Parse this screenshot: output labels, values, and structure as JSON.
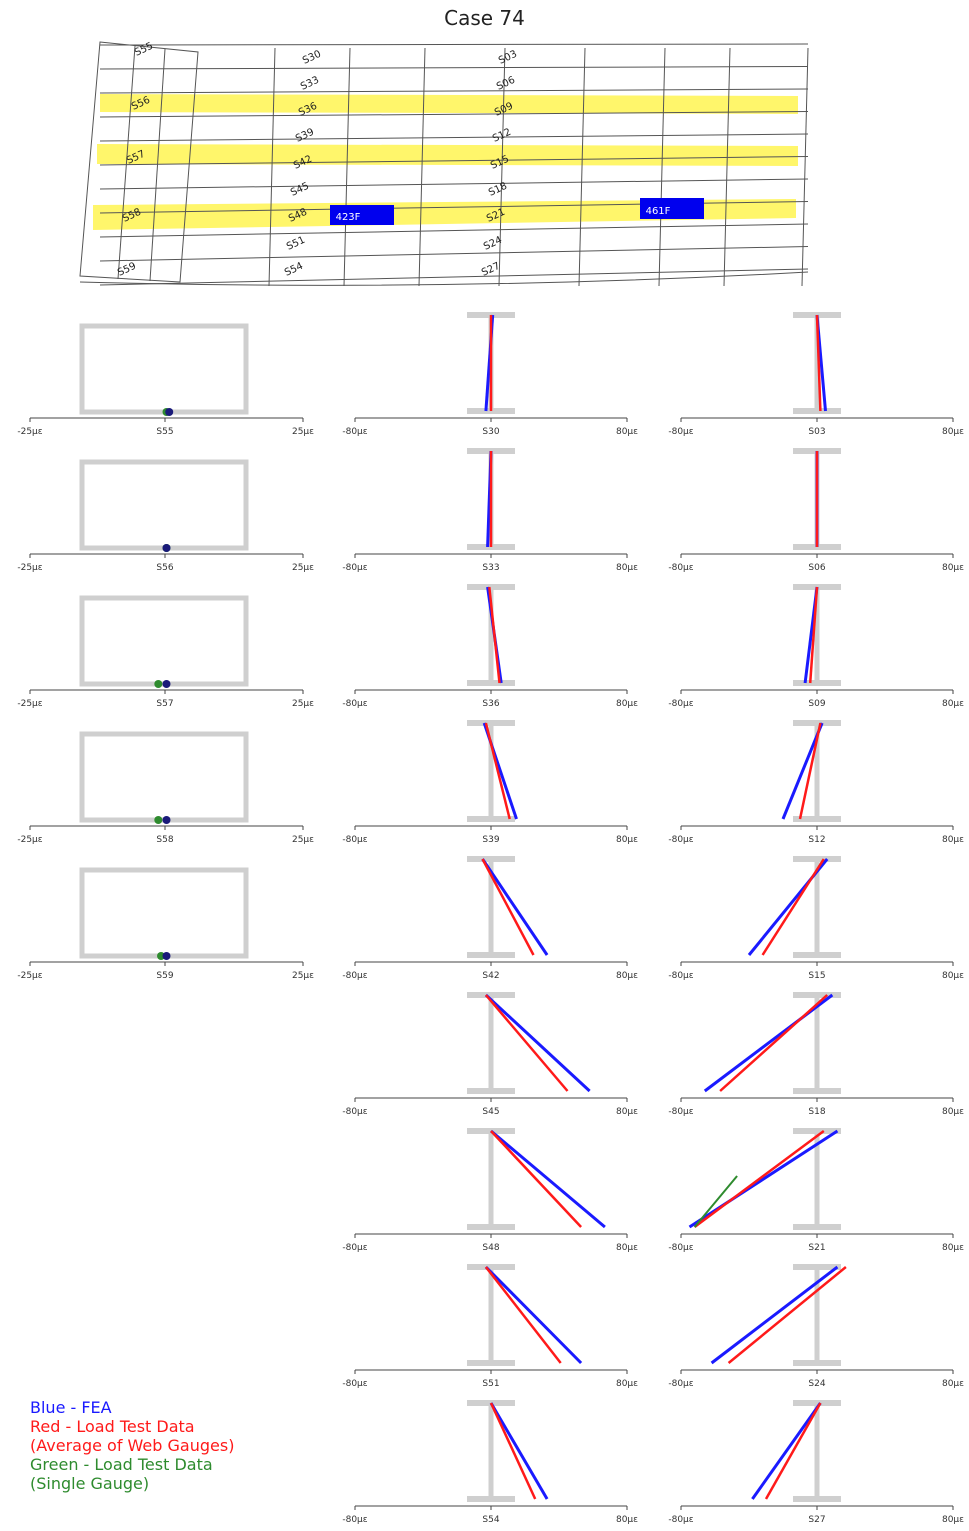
{
  "title": "Case 74",
  "colors": {
    "fea": "#1a1aff",
    "load_test": "#ff1a1a",
    "single_gauge": "#2e8b2e",
    "band": "#fff66b",
    "frame": "#cfcfcf",
    "truck": "#0000ee"
  },
  "plan": {
    "gauge_labels": [
      "S55",
      "S56",
      "S57",
      "S58",
      "S59",
      "S30",
      "S33",
      "S36",
      "S39",
      "S42",
      "S45",
      "S48",
      "S51",
      "S54",
      "S03",
      "S06",
      "S09",
      "S12",
      "S15",
      "S18",
      "S21",
      "S24",
      "S27"
    ],
    "trucks": [
      "423F",
      "461F"
    ]
  },
  "legend": [
    {
      "text": "Blue - FEA",
      "color": "#1a1aff"
    },
    {
      "text": "Red - Load Test Data",
      "color": "#ff1a1a"
    },
    {
      "text": "(Average of Web Gauges)",
      "color": "#ff1a1a"
    },
    {
      "text": "Green - Load Test Data",
      "color": "#2e8b2e"
    },
    {
      "text": "(Single Gauge)",
      "color": "#2e8b2e"
    }
  ],
  "chart_data": {
    "type": "line",
    "x_unit": "με",
    "columns": [
      {
        "axis_labels": [
          "-25με",
          "25με"
        ],
        "xlim": [
          -25,
          25
        ],
        "plots": [
          {
            "gauge": "S55",
            "fea": 0.5,
            "test": 0.0
          },
          {
            "gauge": "S56",
            "fea": 0.0,
            "test": 0.0
          },
          {
            "gauge": "S57",
            "fea": 0.0,
            "test": -1.5
          },
          {
            "gauge": "S58",
            "fea": 0.0,
            "test": -1.5
          },
          {
            "gauge": "S59",
            "fea": 0.0,
            "test": -1.0
          }
        ]
      },
      {
        "axis_labels": [
          "-80με",
          "80με"
        ],
        "xlim": [
          -80,
          80
        ],
        "plots": [
          {
            "gauge": "S30",
            "fea": {
              "top": 1,
              "bot": -3
            },
            "test": {
              "top": 0,
              "bot": 0
            }
          },
          {
            "gauge": "S33",
            "fea": {
              "top": 0,
              "bot": -2
            },
            "test": {
              "top": 0,
              "bot": 0
            }
          },
          {
            "gauge": "S36",
            "fea": {
              "top": -2,
              "bot": 6
            },
            "test": {
              "top": -1,
              "bot": 5
            }
          },
          {
            "gauge": "S39",
            "fea": {
              "top": -4,
              "bot": 15
            },
            "test": {
              "top": -3,
              "bot": 11
            }
          },
          {
            "gauge": "S42",
            "fea": {
              "top": -5,
              "bot": 33
            },
            "test": {
              "top": -5,
              "bot": 25
            }
          },
          {
            "gauge": "S45",
            "fea": {
              "top": -3,
              "bot": 58
            },
            "test": {
              "top": -3,
              "bot": 45
            }
          },
          {
            "gauge": "S48",
            "fea": {
              "top": 0,
              "bot": 67
            },
            "test": {
              "top": 0,
              "bot": 53
            }
          },
          {
            "gauge": "S51",
            "fea": {
              "top": -3,
              "bot": 53
            },
            "test": {
              "top": -3,
              "bot": 41
            }
          },
          {
            "gauge": "S54",
            "fea": {
              "top": 0,
              "bot": 33
            },
            "test": {
              "top": 0,
              "bot": 26
            }
          }
        ]
      },
      {
        "axis_labels": [
          "-80με",
          "80με"
        ],
        "xlim": [
          -80,
          80
        ],
        "plots": [
          {
            "gauge": "S03",
            "fea": {
              "top": 0,
              "bot": 5
            },
            "test": {
              "top": 0,
              "bot": 2
            }
          },
          {
            "gauge": "S06",
            "fea": {
              "top": 0,
              "bot": 0
            },
            "test": {
              "top": 0,
              "bot": 0
            }
          },
          {
            "gauge": "S09",
            "fea": {
              "top": 0,
              "bot": -7
            },
            "test": {
              "top": 0,
              "bot": -4
            }
          },
          {
            "gauge": "S12",
            "fea": {
              "top": 3,
              "bot": -20
            },
            "test": {
              "top": 2,
              "bot": -10
            }
          },
          {
            "gauge": "S15",
            "fea": {
              "top": 6,
              "bot": -40
            },
            "test": {
              "top": 4,
              "bot": -32
            }
          },
          {
            "gauge": "S18",
            "fea": {
              "top": 9,
              "bot": -66
            },
            "test": {
              "top": 6,
              "bot": -57
            }
          },
          {
            "gauge": "S21",
            "fea": {
              "top": 12,
              "bot": -75
            },
            "test": {
              "top": 4,
              "bot": -72
            },
            "single": {
              "top": -47,
              "bot": -72
            }
          },
          {
            "gauge": "S24",
            "fea": {
              "top": 12,
              "bot": -62
            },
            "test": {
              "top": 17,
              "bot": -52
            }
          },
          {
            "gauge": "S27",
            "fea": {
              "top": 2,
              "bot": -38
            },
            "test": {
              "top": 2,
              "bot": -30
            }
          }
        ]
      }
    ]
  }
}
